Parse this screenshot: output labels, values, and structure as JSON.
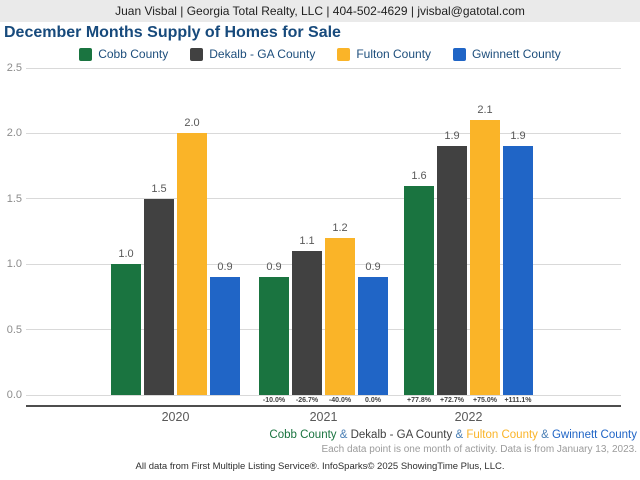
{
  "header": {
    "contact": "Juan Visbal | Georgia Total Realty, LLC | 404-502-4629 | jvisbal@gatotal.com"
  },
  "title": "December Months Supply of Homes for Sale",
  "chart_data": {
    "type": "bar",
    "title": "December Months Supply of Homes for Sale",
    "categories": [
      "2020",
      "2021",
      "2022"
    ],
    "series": [
      {
        "name": "Cobb County",
        "color": "#1a7440",
        "values": [
          1.0,
          0.9,
          1.6
        ],
        "pct_change": [
          "",
          "-10.0%",
          "+77.8%"
        ]
      },
      {
        "name": "Dekalb - GA County",
        "color": "#414141",
        "values": [
          1.5,
          1.1,
          1.9
        ],
        "pct_change": [
          "",
          "-26.7%",
          "+72.7%"
        ]
      },
      {
        "name": "Fulton County",
        "color": "#fab428",
        "values": [
          2.0,
          1.2,
          2.1
        ],
        "pct_change": [
          "",
          "-40.0%",
          "+75.0%"
        ]
      },
      {
        "name": "Gwinnett County",
        "color": "#2065c6",
        "values": [
          0.9,
          0.9,
          1.9
        ],
        "pct_change": [
          "",
          "0.0%",
          "+111.1%"
        ]
      }
    ],
    "ylim": [
      0,
      2.5
    ],
    "ytick_step": 0.5,
    "yticks": [
      "0.0",
      "0.5",
      "1.0",
      "1.5",
      "2.0",
      "2.5"
    ],
    "grid": true,
    "legend_position": "top",
    "value_labels": true,
    "xlabel": "",
    "ylabel": ""
  },
  "footer": {
    "separator": "&",
    "separator_color": "#4a7fb5",
    "note": "Each data point is one month of activity. Data is from January 13, 2023.",
    "attribution": "All data from First Multiple Listing Service®. InfoSparks© 2025 ShowingTime Plus, LLC."
  }
}
